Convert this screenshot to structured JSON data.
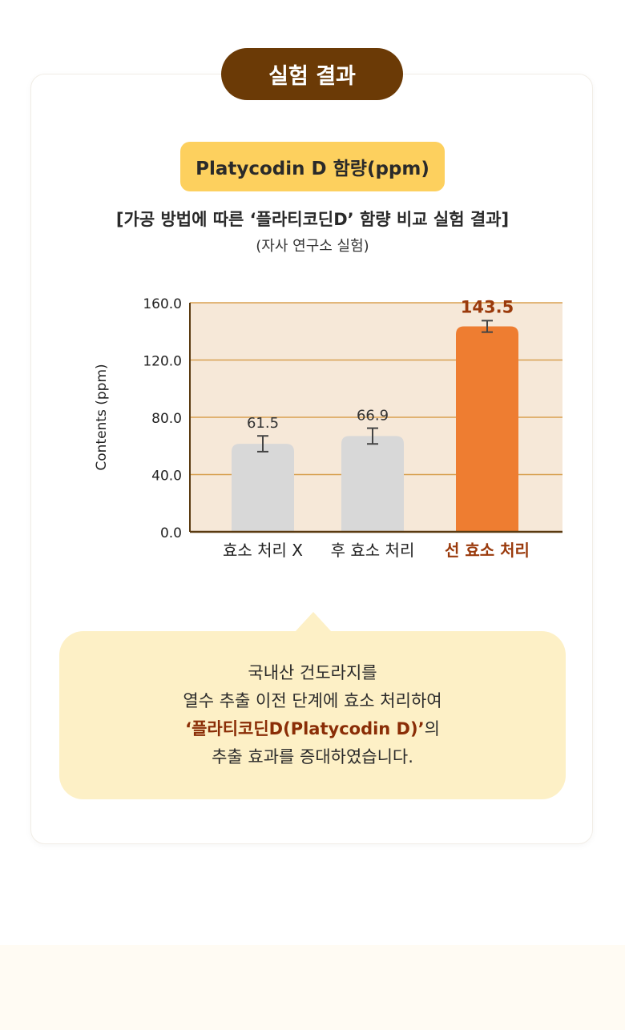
{
  "badge": {
    "label": "실험 결과"
  },
  "label_box": {
    "text": "Platycodin D 함량(ppm)"
  },
  "subtitle": "[가공 방법에 따른 ‘플라티코딘D’ 함량 비교 실험 결과]",
  "note": "(자사 연구소 실험)",
  "chart_data": {
    "type": "bar",
    "categories": [
      "효소 처리 X",
      "후 효소 처리",
      "선 효소 처리"
    ],
    "values": [
      61.5,
      66.9,
      143.5
    ],
    "value_labels": [
      "61.5",
      "66.9",
      "143.5"
    ],
    "error": [
      5.5,
      5.5,
      4.0
    ],
    "ylabel": "Contents (ppm)",
    "yticks": [
      "0.0",
      "40.0",
      "80.0",
      "120.0",
      "160.0"
    ],
    "ylim": [
      0,
      160
    ],
    "grid": true,
    "colors": {
      "bar_default": "#d8d8d8",
      "bar_highlight": "#ee7d31",
      "highlight_label": "#9a3a0c",
      "plot_bg": "#f6e8d8",
      "gridline": "#d8a050",
      "axis": "#5a3a10"
    },
    "highlight_index": 2
  },
  "callout": {
    "line1": "국내산 건도라지를",
    "line2": "열수 추출 이전 단계에 효소 처리하여",
    "line3_highlight": "‘플라티코딘D(Platycodin D)’",
    "line3_suffix": "의",
    "line4": "추출 효과를 증대하였습니다."
  }
}
